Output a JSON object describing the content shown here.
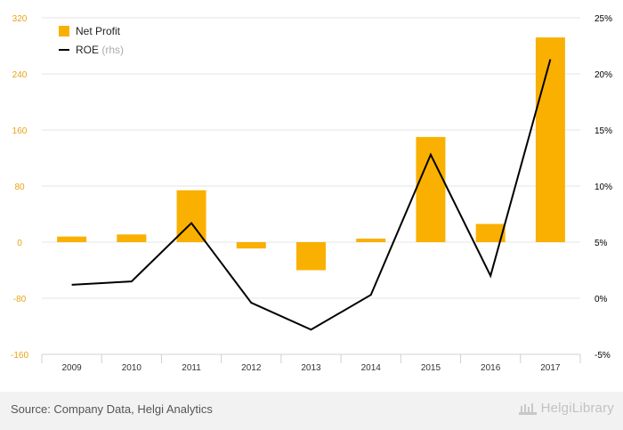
{
  "chart_data": {
    "type": "bar",
    "categories": [
      "2009",
      "2010",
      "2011",
      "2012",
      "2013",
      "2014",
      "2015",
      "2016",
      "2017"
    ],
    "series": [
      {
        "name": "Net Profit",
        "kind": "bar",
        "axis": "left",
        "color": "#f9b000",
        "values": [
          8,
          11,
          74,
          -9,
          -40,
          5,
          150,
          26,
          292
        ]
      },
      {
        "name": "ROE",
        "kind": "line",
        "axis": "right",
        "color": "#000000",
        "values": [
          1.2,
          1.5,
          6.7,
          -0.4,
          -2.8,
          0.3,
          12.8,
          2.0,
          21.3
        ]
      }
    ],
    "left_axis": {
      "min": -160,
      "max": 320,
      "ticks": [
        "320",
        "240",
        "160",
        "80",
        "0",
        "-80",
        "-160"
      ],
      "tick_values": [
        320,
        240,
        160,
        80,
        0,
        -80,
        -160
      ],
      "color": "#e8a317"
    },
    "right_axis": {
      "min": -5,
      "max": 25,
      "ticks": [
        "25%",
        "20%",
        "15%",
        "10%",
        "5%",
        "0%",
        "-5%"
      ],
      "tick_values": [
        25,
        20,
        15,
        10,
        5,
        0,
        -5
      ],
      "color": "#000000"
    },
    "legend": {
      "position": "top-left",
      "items": [
        {
          "label": "Net Profit",
          "suffix": "",
          "symbol": "square",
          "color": "#f9b000"
        },
        {
          "label": "ROE",
          "suffix": "(rhs)",
          "symbol": "line",
          "color": "#000000"
        }
      ]
    },
    "grid": true
  },
  "footer": {
    "source": "Source: Company Data, Helgi Analytics",
    "brand": "HelgiLibrary"
  }
}
